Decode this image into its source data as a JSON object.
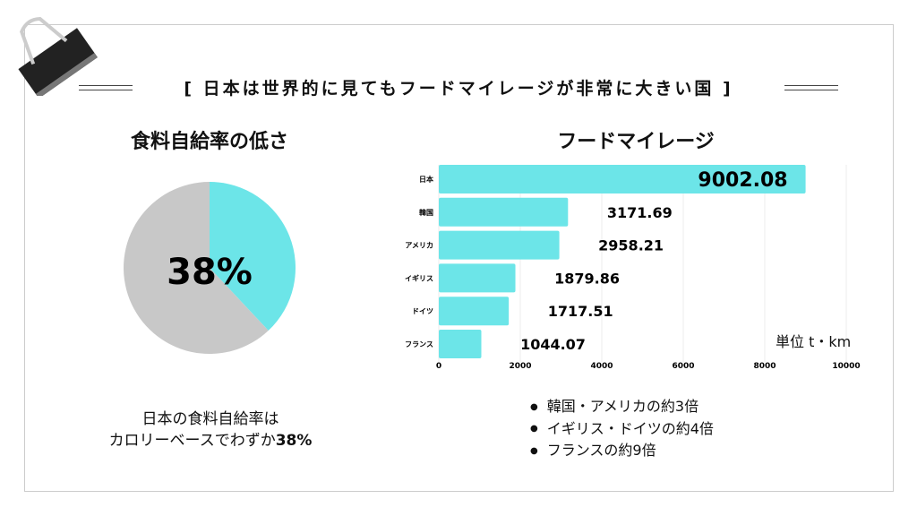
{
  "header": {
    "title": "[ 日本は世界的に見てもフードマイレージが非常に大きい国 ]"
  },
  "colors": {
    "accent": "#6ce5e8",
    "gray": "#c8c8c8"
  },
  "left": {
    "title": "食料自給率の低さ",
    "caption_line1": "日本の食料自給率は",
    "caption_line2": "カロリーベースでわずか",
    "caption_bold": "38%"
  },
  "right": {
    "title": "フードマイレージ",
    "unit": "単位 t・km",
    "bullets": [
      "韓国・アメリカの約3倍",
      "イギリス・ドイツの約4倍",
      "フランスの約9倍"
    ]
  },
  "chart_data": [
    {
      "type": "pie",
      "values": [
        38,
        62
      ],
      "label": "38%",
      "colors": [
        "#6ce5e8",
        "#c8c8c8"
      ]
    },
    {
      "type": "bar",
      "orientation": "horizontal",
      "categories": [
        "日本",
        "韓国",
        "アメリカ",
        "イギリス",
        "ドイツ",
        "フランス"
      ],
      "values": [
        9002.08,
        3171.69,
        2958.21,
        1879.86,
        1717.51,
        1044.07
      ],
      "labels": [
        "9002.08",
        "3171.69",
        "2958.21",
        "1879.86",
        "1717.51",
        "1044.07"
      ],
      "xlim": [
        0,
        10000
      ],
      "xticks": [
        "0",
        "2000",
        "4000",
        "6000",
        "8000",
        "10000"
      ],
      "grid": true
    }
  ]
}
